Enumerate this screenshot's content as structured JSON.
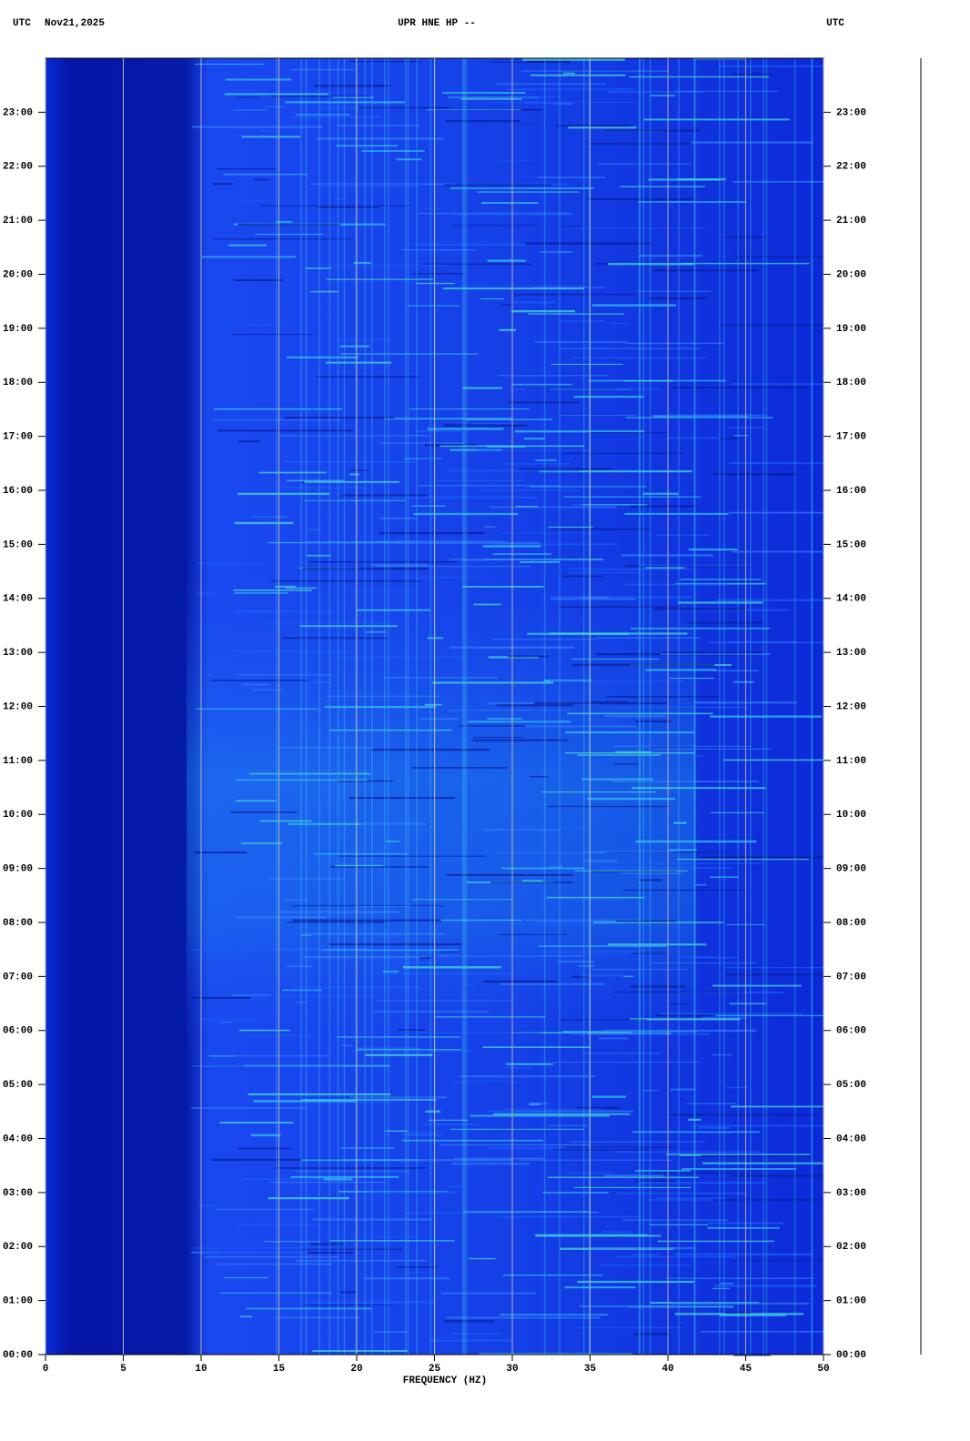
{
  "chart_data": {
    "type": "spectrogram",
    "title": "UPR HNE HP --",
    "date": "Nov21,2025",
    "timezone_left": "UTC",
    "timezone_right": "UTC",
    "xlabel": "FREQUENCY (HZ)",
    "xlim": [
      0,
      50
    ],
    "xticks": [
      0,
      5,
      10,
      15,
      20,
      25,
      30,
      35,
      40,
      45,
      50
    ],
    "ylim": [
      0,
      24
    ],
    "yticks": [
      {
        "value": 0,
        "label": "00:00"
      },
      {
        "value": 1,
        "label": "01:00"
      },
      {
        "value": 2,
        "label": "02:00"
      },
      {
        "value": 3,
        "label": "03:00"
      },
      {
        "value": 4,
        "label": "04:00"
      },
      {
        "value": 5,
        "label": "05:00"
      },
      {
        "value": 6,
        "label": "06:00"
      },
      {
        "value": 7,
        "label": "07:00"
      },
      {
        "value": 8,
        "label": "08:00"
      },
      {
        "value": 9,
        "label": "09:00"
      },
      {
        "value": 10,
        "label": "10:00"
      },
      {
        "value": 11,
        "label": "11:00"
      },
      {
        "value": 12,
        "label": "12:00"
      },
      {
        "value": 13,
        "label": "13:00"
      },
      {
        "value": 14,
        "label": "14:00"
      },
      {
        "value": 15,
        "label": "15:00"
      },
      {
        "value": 16,
        "label": "16:00"
      },
      {
        "value": 17,
        "label": "17:00"
      },
      {
        "value": 18,
        "label": "18:00"
      },
      {
        "value": 19,
        "label": "19:00"
      },
      {
        "value": 20,
        "label": "20:00"
      },
      {
        "value": 21,
        "label": "21:00"
      },
      {
        "value": 22,
        "label": "22:00"
      },
      {
        "value": 23,
        "label": "23:00"
      }
    ],
    "grid": true
  }
}
